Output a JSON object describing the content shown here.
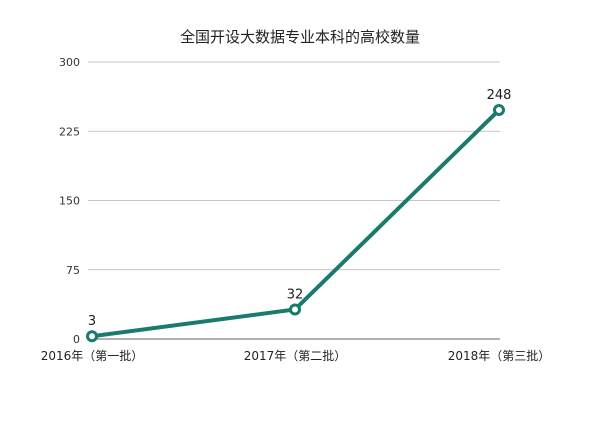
{
  "chart_data": {
    "type": "line",
    "title": "全国开设大数据专业本科的高校数量",
    "xlabel": "",
    "ylabel": "",
    "categories": [
      "2016年（第一批）",
      "2017年（第二批）",
      "2018年（第三批）"
    ],
    "values": [
      3,
      32,
      248
    ],
    "data_labels": [
      "3",
      "32",
      "248"
    ],
    "ylim": [
      0,
      300
    ],
    "y_ticks": [
      0,
      75,
      150,
      225,
      300
    ],
    "y_tick_labels": [
      "0",
      "75",
      "150",
      "225",
      "300"
    ],
    "grid": true,
    "legend": "none",
    "colors": {
      "line": "#1a7a6e",
      "marker_fill": "#ffffff",
      "grid": "#b5b5b5",
      "axis": "#666666"
    }
  }
}
